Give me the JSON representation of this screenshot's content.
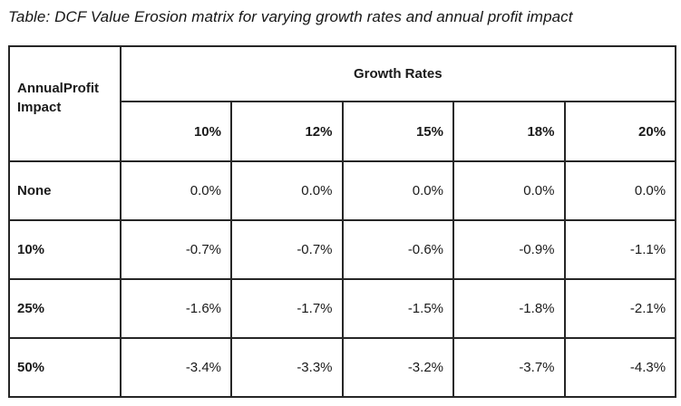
{
  "title": "Table: DCF Value Erosion matrix for varying growth rates and annual profit impact",
  "table": {
    "corner_header": "AnnualProfit Impact",
    "group_header": "Growth Rates",
    "column_headers": [
      "10%",
      "12%",
      "15%",
      "18%",
      "20%"
    ],
    "rows": [
      {
        "label": "None",
        "values": [
          "0.0%",
          "0.0%",
          "0.0%",
          "0.0%",
          "0.0%"
        ]
      },
      {
        "label": "10%",
        "values": [
          "-0.7%",
          "-0.7%",
          "-0.6%",
          "-0.9%",
          "-1.1%"
        ]
      },
      {
        "label": "25%",
        "values": [
          "-1.6%",
          "-1.7%",
          "-1.5%",
          "-1.8%",
          "-2.1%"
        ]
      },
      {
        "label": "50%",
        "values": [
          "-3.4%",
          "-3.3%",
          "-3.2%",
          "-3.7%",
          "-4.3%"
        ]
      }
    ]
  },
  "chart_data": {
    "type": "table",
    "title": "Table: DCF Value Erosion matrix for varying growth rates and annual profit impact",
    "row_header_label": "AnnualProfit Impact",
    "column_group_label": "Growth Rates",
    "columns": [
      "10%",
      "12%",
      "15%",
      "18%",
      "20%"
    ],
    "row_categories": [
      "None",
      "10%",
      "25%",
      "50%"
    ],
    "values_percent": [
      [
        0.0,
        0.0,
        0.0,
        0.0,
        0.0
      ],
      [
        -0.7,
        -0.7,
        -0.6,
        -0.9,
        -1.1
      ],
      [
        -1.6,
        -1.7,
        -1.5,
        -1.8,
        -2.1
      ],
      [
        -3.4,
        -3.3,
        -3.2,
        -3.7,
        -4.3
      ]
    ],
    "unit": "%",
    "colors": {
      "text": "#1a1a1a",
      "border": "#262626",
      "background": "#ffffff"
    }
  }
}
